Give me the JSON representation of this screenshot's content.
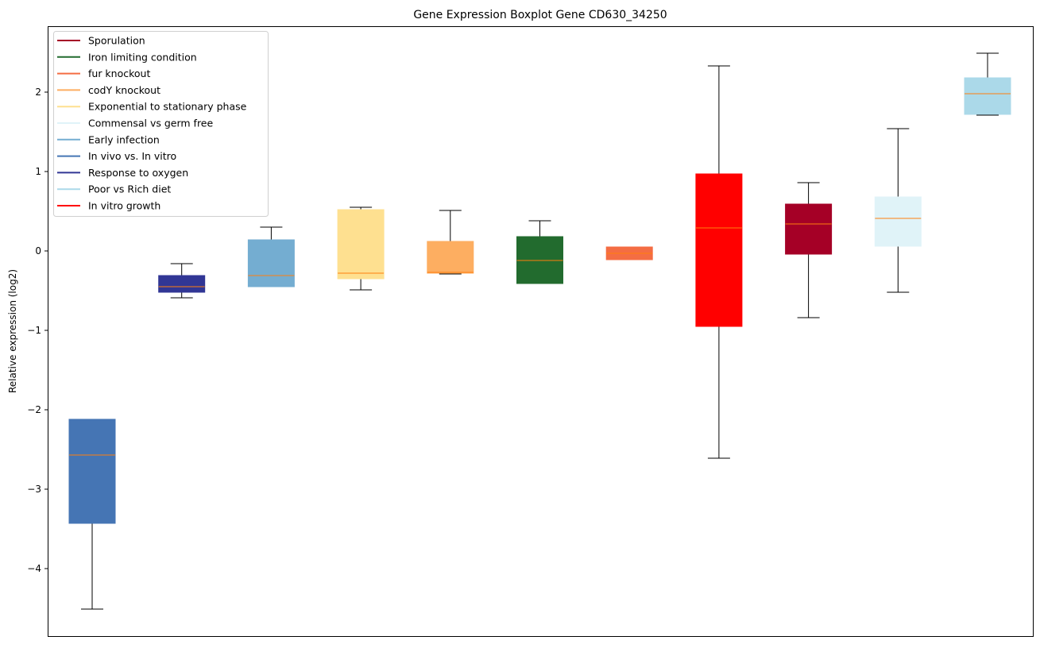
{
  "chart_data": {
    "type": "box",
    "title": "Gene Expression Boxplot Gene CD630_34250",
    "xlabel": "",
    "ylabel": "Relative expression (log2)",
    "ylim": [
      -4.86,
      2.83
    ],
    "yticks": [
      2,
      1,
      0,
      -1,
      -2,
      -3,
      -4
    ],
    "ytick_labels": [
      "2",
      "1",
      "0",
      "−1",
      "−2",
      "−3",
      "−4"
    ],
    "grid": false,
    "legend_position": "top-left",
    "median_color": "#ff7f0e",
    "boxes": [
      {
        "color": "#4575b4",
        "whisker_low": -4.51,
        "q1": -3.43,
        "median": -2.57,
        "q3": -2.12,
        "whisker_high": -2.12
      },
      {
        "color": "#313695",
        "whisker_low": -0.59,
        "q1": -0.52,
        "median": -0.45,
        "q3": -0.31,
        "whisker_high": -0.16
      },
      {
        "color": "#74add1",
        "whisker_low": -0.45,
        "q1": -0.45,
        "median": -0.31,
        "q3": 0.14,
        "whisker_high": 0.3
      },
      {
        "color": "#fee090",
        "whisker_low": -0.49,
        "q1": -0.35,
        "median": -0.28,
        "q3": 0.52,
        "whisker_high": 0.55
      },
      {
        "color": "#fdae61",
        "whisker_low": -0.29,
        "q1": -0.28,
        "median": -0.27,
        "q3": 0.12,
        "whisker_high": 0.51
      },
      {
        "color": "#226b2e",
        "whisker_low": -0.41,
        "q1": -0.41,
        "median": -0.12,
        "q3": 0.18,
        "whisker_high": 0.38
      },
      {
        "color": "#f46d43",
        "whisker_low": -0.11,
        "q1": -0.11,
        "median": -0.03,
        "q3": 0.05,
        "whisker_high": 0.05
      },
      {
        "color": "#ff0000",
        "whisker_low": -2.61,
        "q1": -0.95,
        "median": 0.29,
        "q3": 0.97,
        "whisker_high": 2.33
      },
      {
        "color": "#a50026",
        "whisker_low": -0.84,
        "q1": -0.04,
        "median": 0.34,
        "q3": 0.59,
        "whisker_high": 0.86
      },
      {
        "color": "#e0f3f8",
        "whisker_low": -0.52,
        "q1": 0.06,
        "median": 0.41,
        "q3": 0.68,
        "whisker_high": 1.54
      },
      {
        "color": "#abd9e9",
        "whisker_low": 1.71,
        "q1": 1.72,
        "median": 1.98,
        "q3": 2.18,
        "whisker_high": 2.49
      }
    ],
    "legend": [
      {
        "name": "Sporulation",
        "color": "#a50026"
      },
      {
        "name": "Iron limiting condition",
        "color": "#226b2e"
      },
      {
        "name": "fur knockout",
        "color": "#f46d43"
      },
      {
        "name": "codY knockout",
        "color": "#fdae61"
      },
      {
        "name": "Exponential to stationary phase",
        "color": "#fee090"
      },
      {
        "name": "Commensal vs germ free",
        "color": "#e0f3f8"
      },
      {
        "name": "Early infection",
        "color": "#74add1"
      },
      {
        "name": "In vivo vs. In vitro",
        "color": "#4575b4"
      },
      {
        "name": "Response to oxygen",
        "color": "#313695"
      },
      {
        "name": "Poor vs Rich diet",
        "color": "#abd9e9"
      },
      {
        "name": "In vitro growth",
        "color": "#ff0000"
      }
    ]
  }
}
